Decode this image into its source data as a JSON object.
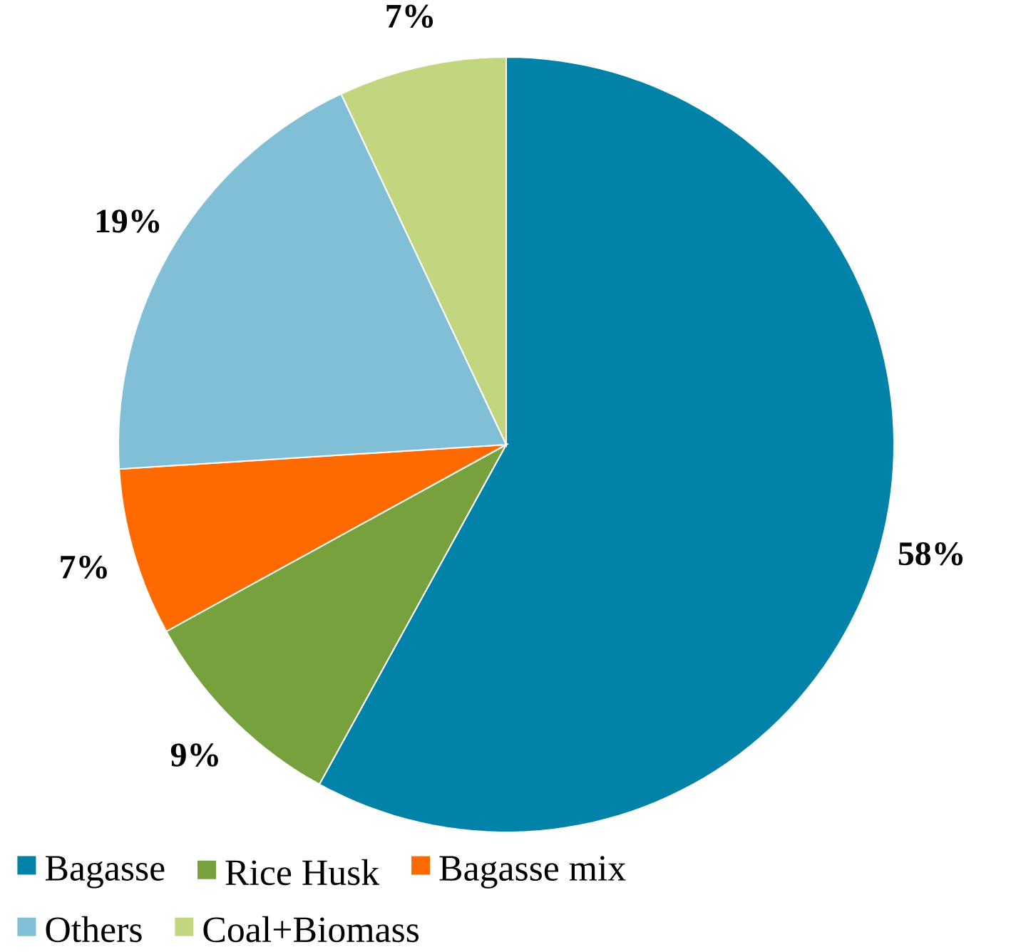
{
  "chart_data": {
    "type": "pie",
    "categories": [
      "Bagasse",
      "Rice Husk",
      "Bagasse mix",
      "Others",
      "Coal+Biomass"
    ],
    "values": [
      58,
      9,
      7,
      19,
      7
    ],
    "value_labels": [
      "58%",
      "9%",
      "7%",
      "19%",
      "7%"
    ],
    "colors": [
      "#0182a8",
      "#76a13c",
      "#ff6a00",
      "#80bfd5",
      "#c2d680"
    ],
    "legend": "bottom"
  }
}
